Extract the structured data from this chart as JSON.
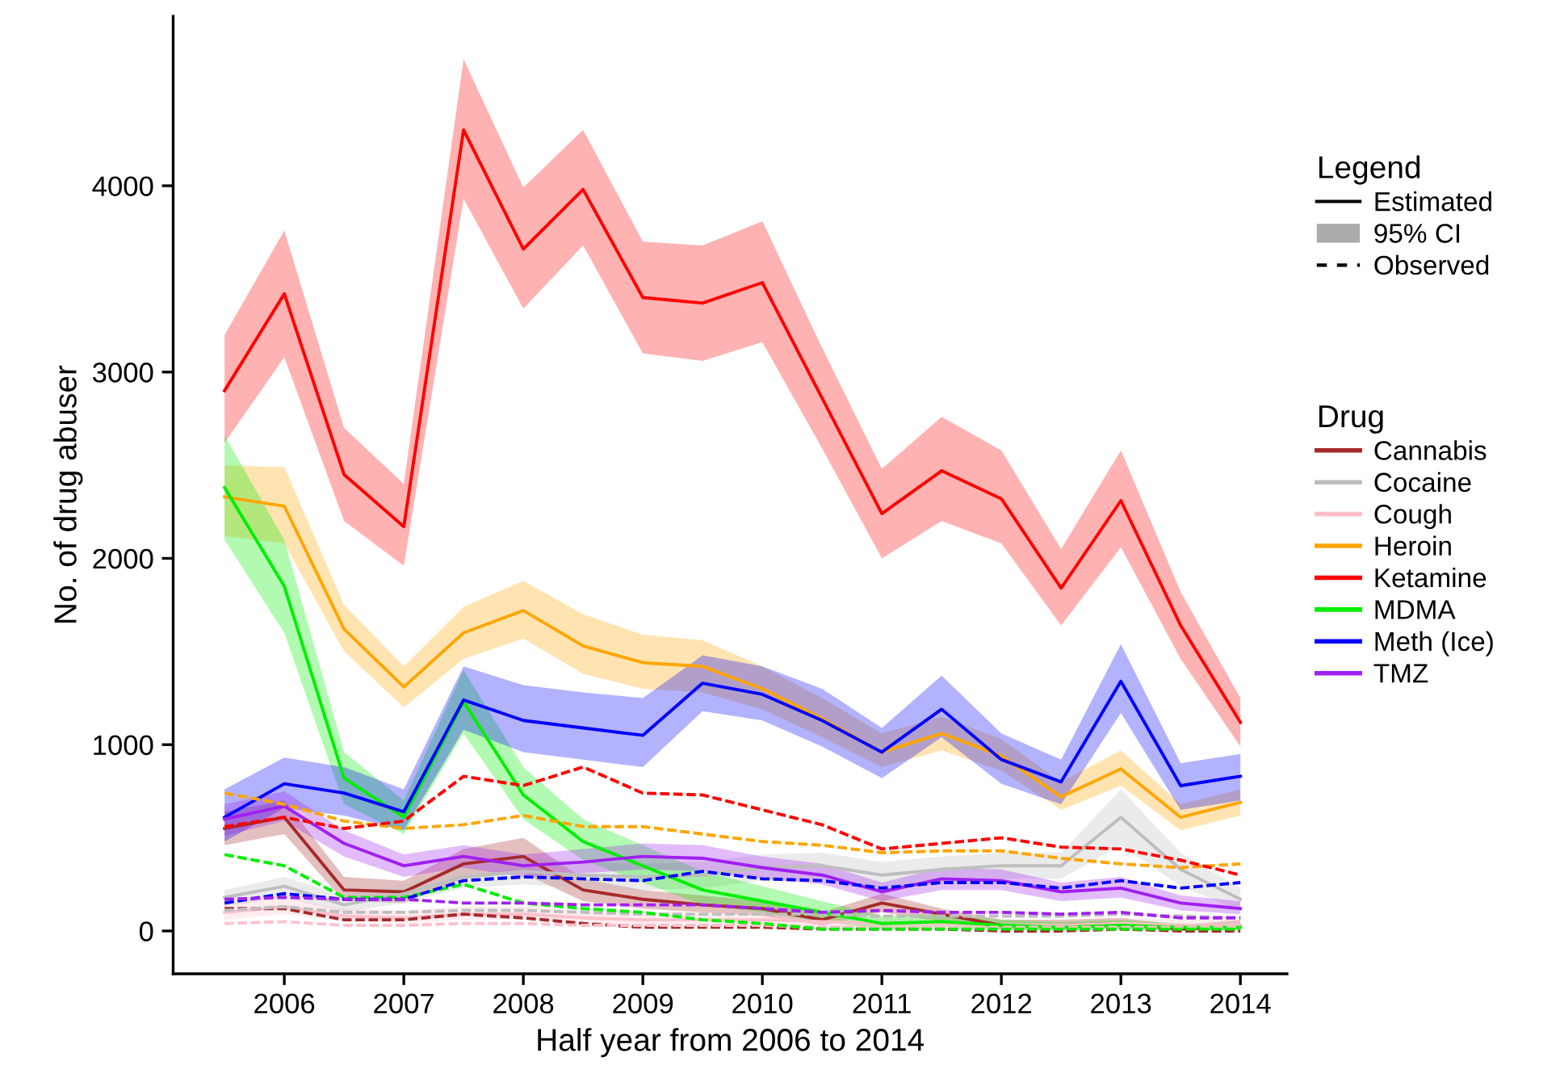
{
  "chart_data": {
    "type": "line",
    "xlabel": "Half year from 2006 to 2014",
    "ylabel": "No. of drug abuser",
    "legend_title": "Drug",
    "annotations": [
      "Legend",
      "Estimated",
      "95% CI",
      "Observed"
    ],
    "x": [
      2005.5,
      2006,
      2006.5,
      2007,
      2007.5,
      2008,
      2008.5,
      2009,
      2009.5,
      2010,
      2010.5,
      2011,
      2011.5,
      2012,
      2012.5,
      2013,
      2013.5,
      2014
    ],
    "xlim": [
      2005.07,
      2014.39
    ],
    "xticks": [
      2006,
      2007,
      2008,
      2009,
      2010,
      2011,
      2012,
      2013,
      2014
    ],
    "ylim": [
      -230,
      4910
    ],
    "yticks": [
      0,
      1000,
      2000,
      3000,
      4000
    ],
    "grid": false,
    "legend": "right",
    "series": [
      {
        "name": "Cannabis",
        "color": "#a52a2a",
        "line_style": "solid",
        "values": [
          550,
          610,
          220,
          210,
          360,
          400,
          220,
          170,
          140,
          120,
          60,
          150,
          90,
          30,
          30,
          40,
          10,
          30
        ],
        "lower": [
          460,
          520,
          160,
          150,
          280,
          310,
          160,
          120,
          100,
          80,
          30,
          100,
          50,
          10,
          10,
          20,
          0,
          10
        ],
        "upper": [
          640,
          700,
          290,
          270,
          440,
          500,
          280,
          220,
          190,
          160,
          100,
          200,
          120,
          60,
          60,
          70,
          30,
          60
        ]
      },
      {
        "name": "Cocaine",
        "color": "#bebebe",
        "line_style": "solid",
        "values": [
          180,
          240,
          140,
          200,
          290,
          320,
          300,
          290,
          300,
          340,
          350,
          300,
          330,
          350,
          350,
          610,
          330,
          170
        ],
        "lower": [
          130,
          180,
          100,
          150,
          230,
          250,
          230,
          220,
          230,
          270,
          280,
          230,
          260,
          280,
          280,
          460,
          240,
          110
        ],
        "upper": [
          220,
          290,
          190,
          250,
          350,
          390,
          370,
          360,
          370,
          410,
          420,
          370,
          400,
          420,
          420,
          760,
          420,
          230
        ]
      },
      {
        "name": "Cough",
        "color": "#ffc0cb",
        "line_style": "solid",
        "values": [
          100,
          130,
          80,
          70,
          90,
          90,
          70,
          60,
          60,
          60,
          50,
          40,
          40,
          30,
          30,
          40,
          30,
          30
        ],
        "lower": [
          60,
          90,
          50,
          40,
          60,
          60,
          40,
          30,
          30,
          30,
          20,
          20,
          20,
          10,
          10,
          20,
          10,
          10
        ],
        "upper": [
          150,
          180,
          120,
          110,
          130,
          130,
          110,
          100,
          100,
          100,
          90,
          70,
          70,
          60,
          60,
          70,
          60,
          60
        ]
      },
      {
        "name": "Heroin",
        "color": "#ffa500",
        "line_style": "solid",
        "values": [
          2330,
          2280,
          1620,
          1310,
          1600,
          1720,
          1530,
          1440,
          1420,
          1300,
          1140,
          960,
          1060,
          940,
          720,
          870,
          610,
          690
        ],
        "lower": [
          2120,
          2080,
          1500,
          1200,
          1460,
          1570,
          1380,
          1300,
          1280,
          1190,
          1040,
          880,
          970,
          860,
          650,
          780,
          540,
          620
        ],
        "upper": [
          2500,
          2490,
          1750,
          1420,
          1740,
          1880,
          1700,
          1590,
          1560,
          1420,
          1250,
          1060,
          1150,
          1030,
          800,
          970,
          680,
          760
        ]
      },
      {
        "name": "Ketamine",
        "color": "#ff0000",
        "line_style": "solid",
        "values": [
          2900,
          3420,
          2450,
          2170,
          4300,
          3660,
          3980,
          3400,
          3370,
          3480,
          2860,
          2240,
          2470,
          2320,
          1840,
          2310,
          1640,
          1120
        ],
        "lower": [
          2620,
          3080,
          2200,
          1960,
          3930,
          3340,
          3680,
          3100,
          3060,
          3160,
          2590,
          2000,
          2200,
          2080,
          1640,
          2060,
          1460,
          990
        ],
        "upper": [
          3200,
          3760,
          2700,
          2400,
          4680,
          3990,
          4300,
          3700,
          3680,
          3810,
          3130,
          2480,
          2760,
          2580,
          2050,
          2580,
          1820,
          1250
        ]
      },
      {
        "name": "MDMA",
        "color": "#00ee00",
        "line_style": "solid",
        "values": [
          2380,
          1850,
          820,
          610,
          1230,
          730,
          480,
          350,
          220,
          160,
          100,
          40,
          50,
          30,
          20,
          30,
          20,
          20
        ],
        "lower": [
          2100,
          1600,
          680,
          520,
          1060,
          600,
          380,
          260,
          140,
          100,
          50,
          10,
          20,
          10,
          0,
          10,
          0,
          0
        ],
        "upper": [
          2660,
          2100,
          960,
          700,
          1400,
          880,
          600,
          460,
          320,
          240,
          160,
          80,
          90,
          60,
          50,
          60,
          40,
          40
        ]
      },
      {
        "name": "Meth (Ice)",
        "color": "#0000ff",
        "line_style": "solid",
        "values": [
          610,
          790,
          740,
          640,
          1240,
          1130,
          1090,
          1050,
          1330,
          1270,
          1130,
          960,
          1190,
          920,
          800,
          1340,
          780,
          830
        ],
        "lower": [
          480,
          660,
          620,
          540,
          1080,
          960,
          920,
          880,
          1180,
          1130,
          990,
          820,
          1040,
          790,
          680,
          1170,
          650,
          700
        ],
        "upper": [
          760,
          930,
          880,
          760,
          1420,
          1320,
          1280,
          1250,
          1480,
          1420,
          1300,
          1090,
          1370,
          1060,
          920,
          1540,
          900,
          950
        ]
      },
      {
        "name": "TMZ",
        "color": "#a020f0",
        "line_style": "solid",
        "values": [
          600,
          670,
          470,
          350,
          400,
          350,
          370,
          400,
          390,
          340,
          300,
          210,
          280,
          270,
          210,
          230,
          150,
          120
        ],
        "lower": [
          510,
          590,
          400,
          290,
          340,
          290,
          310,
          330,
          320,
          280,
          250,
          160,
          220,
          220,
          160,
          180,
          110,
          90
        ],
        "upper": [
          680,
          750,
          540,
          410,
          460,
          410,
          440,
          470,
          460,
          400,
          360,
          260,
          340,
          330,
          260,
          290,
          190,
          160
        ]
      },
      {
        "color": "#a52a2a",
        "line_style": "dashed",
        "values": [
          120,
          120,
          60,
          60,
          90,
          70,
          40,
          20,
          20,
          20,
          10,
          10,
          10,
          0,
          0,
          10,
          0,
          0
        ]
      },
      {
        "color": "#bebebe",
        "line_style": "dashed",
        "values": [
          110,
          130,
          100,
          100,
          110,
          110,
          100,
          90,
          90,
          90,
          90,
          80,
          80,
          80,
          80,
          90,
          80,
          70
        ]
      },
      {
        "color": "#ffc0cb",
        "line_style": "dashed",
        "values": [
          40,
          50,
          30,
          30,
          40,
          40,
          30,
          30,
          30,
          30,
          20,
          20,
          20,
          20,
          20,
          20,
          20,
          20
        ]
      },
      {
        "color": "#ffa500",
        "line_style": "dashed",
        "values": [
          740,
          680,
          590,
          550,
          570,
          620,
          560,
          560,
          520,
          480,
          460,
          420,
          430,
          430,
          390,
          360,
          340,
          360
        ]
      },
      {
        "color": "#ff0000",
        "line_style": "dashed",
        "values": [
          560,
          610,
          550,
          590,
          830,
          780,
          880,
          740,
          730,
          650,
          570,
          440,
          470,
          500,
          450,
          440,
          380,
          300
        ]
      },
      {
        "color": "#00ee00",
        "line_style": "dashed",
        "values": [
          410,
          350,
          180,
          180,
          250,
          150,
          120,
          100,
          60,
          40,
          10,
          10,
          10,
          10,
          10,
          10,
          10,
          10
        ]
      },
      {
        "color": "#0000ff",
        "line_style": "dashed",
        "values": [
          150,
          200,
          170,
          170,
          270,
          290,
          280,
          270,
          320,
          280,
          270,
          230,
          260,
          260,
          230,
          270,
          230,
          260
        ]
      },
      {
        "color": "#a020f0",
        "line_style": "dashed",
        "values": [
          170,
          180,
          170,
          170,
          150,
          150,
          140,
          140,
          140,
          120,
          100,
          110,
          100,
          100,
          90,
          100,
          70,
          70
        ]
      }
    ]
  }
}
